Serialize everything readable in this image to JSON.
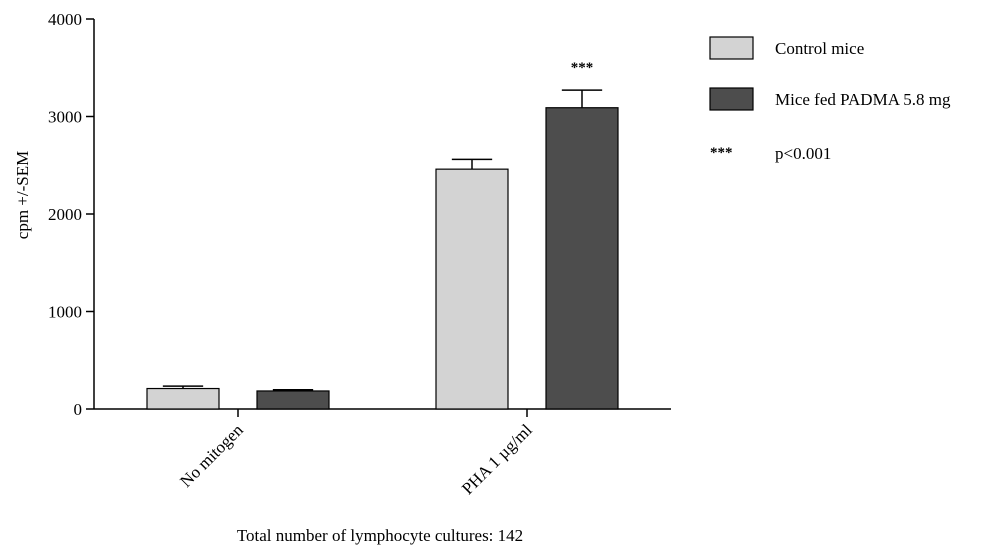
{
  "chart_data": {
    "type": "bar",
    "categories": [
      "No mitogen",
      "PHA 1 µg/ml"
    ],
    "series": [
      {
        "name": "Control mice",
        "values": [
          210,
          2460
        ],
        "errors": [
          25,
          100
        ],
        "color": "#d3d3d3"
      },
      {
        "name": "Mice fed PADMA 5.8 mg",
        "values": [
          185,
          3090
        ],
        "errors": [
          12,
          180
        ],
        "color": "#4d4d4d"
      }
    ],
    "ylabel": "cpm +/-SEM",
    "ylim": [
      0,
      4000
    ],
    "yticks": [
      0,
      1000,
      2000,
      3000,
      4000
    ],
    "annotations": [
      {
        "category_index": 1,
        "series_index": 1,
        "text": "***"
      }
    ],
    "significance_legend": {
      "symbol": "***",
      "text": "p<0.001"
    },
    "legend_position": "top-right",
    "footnote": "Total number of lymphocyte cultures: 142",
    "grid": false
  }
}
